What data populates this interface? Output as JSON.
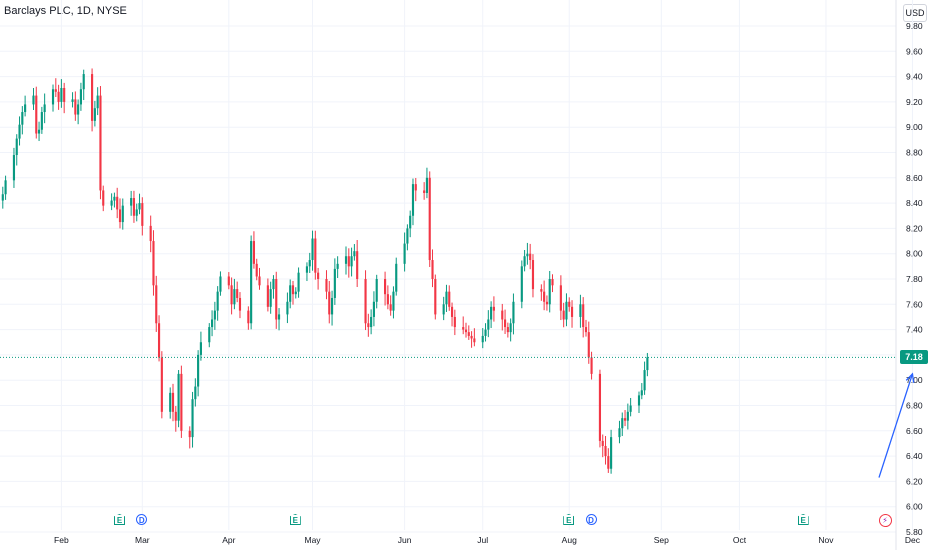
{
  "header": {
    "title": "Barclays PLC, 1D, NYSE",
    "currency": "USD"
  },
  "last_price": {
    "label": "7.18",
    "value": 7.18,
    "color": "#089981"
  },
  "colors": {
    "up": "#089981",
    "down": "#f23645",
    "arrow": "#2962ff",
    "grid": "#f0f3fa"
  },
  "events": [
    {
      "type": "E",
      "date": "2024-02-22"
    },
    {
      "type": "D",
      "date": "2024-03-01"
    },
    {
      "type": "E",
      "date": "2024-04-25"
    },
    {
      "type": "E",
      "date": "2024-08-01"
    },
    {
      "type": "D",
      "date": "2024-08-09"
    },
    {
      "type": "E",
      "date": "2024-10-24"
    },
    {
      "type": "S",
      "date": "2024-11-22"
    }
  ],
  "chart_data": {
    "type": "candlestick",
    "title": "Barclays PLC, 1D, NYSE",
    "y_unit": "USD",
    "ylim": [
      5.8,
      9.9
    ],
    "xlim": [
      "2024-01-10",
      "2024-12-09"
    ],
    "y_ticks": [
      "9.80",
      "9.60",
      "9.40",
      "9.20",
      "9.00",
      "8.80",
      "8.60",
      "8.40",
      "8.20",
      "8.00",
      "7.80",
      "7.60",
      "7.40",
      "7.20",
      "7.00",
      "6.80",
      "6.60",
      "6.40",
      "6.20",
      "6.00",
      "5.80"
    ],
    "x_ticks": [
      {
        "label": "Feb",
        "date": "2024-02-01"
      },
      {
        "label": "Mar",
        "date": "2024-03-01"
      },
      {
        "label": "Apr",
        "date": "2024-04-01"
      },
      {
        "label": "May",
        "date": "2024-05-01"
      },
      {
        "label": "Jun",
        "date": "2024-06-03"
      },
      {
        "label": "Jul",
        "date": "2024-07-01"
      },
      {
        "label": "Aug",
        "date": "2024-08-01"
      },
      {
        "label": "Sep",
        "date": "2024-09-03"
      },
      {
        "label": "Oct",
        "date": "2024-10-01"
      },
      {
        "label": "Nov",
        "date": "2024-11-01"
      },
      {
        "label": "Dec",
        "date": "2024-12-02"
      }
    ],
    "annotation": {
      "type": "arrow",
      "from": [
        "2024-11-20",
        6.23
      ],
      "to": [
        "2024-12-02",
        7.05
      ]
    },
    "close_series": [
      8.47,
      8.58,
      8.78,
      8.91,
      9.02,
      9.12,
      9.18,
      9.25,
      8.95,
      8.98,
      9.12,
      9.18,
      9.3,
      9.28,
      9.2,
      9.31,
      9.2,
      9.22,
      9.1,
      9.18,
      9.3,
      9.42,
      9.05,
      9.15,
      9.25,
      8.5,
      8.38,
      8.42,
      8.45,
      8.35,
      8.25,
      8.38,
      8.44,
      8.3,
      8.35,
      8.4,
      8.22,
      8.1,
      7.75,
      7.45,
      7.18,
      6.75,
      6.9,
      6.75,
      6.68,
      7.05,
      6.6,
      6.55,
      6.85,
      6.95,
      7.2,
      7.3,
      7.42,
      7.48,
      7.55,
      7.7,
      7.82,
      7.75,
      7.6,
      7.72,
      7.65,
      7.55,
      7.45,
      8.1,
      7.92,
      7.82,
      7.75,
      7.58,
      7.72,
      7.8,
      7.48,
      7.52,
      7.62,
      7.75,
      7.68,
      7.7,
      7.85,
      7.9,
      7.95,
      8.12,
      7.85,
      7.8,
      7.7,
      7.52,
      7.65,
      7.88,
      7.92,
      7.98,
      7.9,
      7.98,
      8.02,
      7.8,
      7.45,
      7.42,
      7.5,
      7.62,
      7.8,
      7.68,
      7.6,
      7.55,
      7.7,
      7.92,
      8.08,
      8.2,
      8.3,
      8.55,
      8.5,
      8.48,
      8.6,
      7.95,
      7.8,
      7.52,
      7.6,
      7.7,
      7.58,
      7.5,
      7.42,
      7.4,
      7.38,
      7.35,
      7.33,
      7.3,
      7.35,
      7.4,
      7.48,
      7.58,
      7.55,
      7.48,
      7.42,
      7.38,
      7.45,
      7.62,
      7.9,
      7.98,
      8.0,
      7.95,
      7.72,
      7.7,
      7.62,
      7.6,
      7.8,
      7.75,
      7.55,
      7.48,
      7.62,
      7.58,
      7.5,
      7.6,
      7.42,
      7.38,
      7.18,
      7.05,
      6.52,
      6.48,
      6.4,
      6.3,
      6.55,
      6.62,
      6.7,
      6.68,
      6.75,
      6.8,
      6.88,
      6.92,
      7.08,
      7.18
    ]
  }
}
